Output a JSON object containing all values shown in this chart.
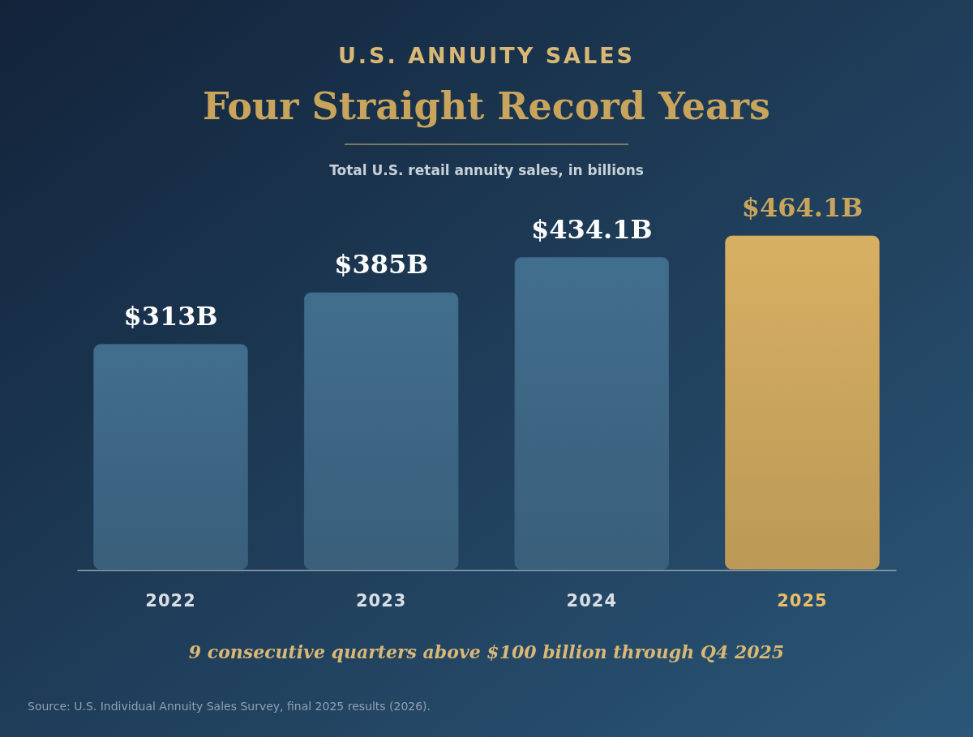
{
  "chart_data": {
    "type": "bar",
    "title": "U.S. ANNUITY SALES",
    "subtitle": "Four Straight Record Years",
    "categories": [
      "2022",
      "2023",
      "2024",
      "2025"
    ],
    "values": [
      313,
      385,
      434.1,
      464.1
    ],
    "value_labels": [
      "$313B",
      "$385B",
      "$434.1B",
      "$464.1B"
    ],
    "colors": [
      "#3d6684",
      "#3d6684",
      "#3d6684",
      "#c9a45c"
    ],
    "annotations": [
      "Total U.S. retail annuity sales, in billions",
      "9 consecutive quarters above $100 billion through Q4 2025",
      "Source: U.S. Individual Annuity Sales Survey, final 2025 results (2026)."
    ]
  }
}
